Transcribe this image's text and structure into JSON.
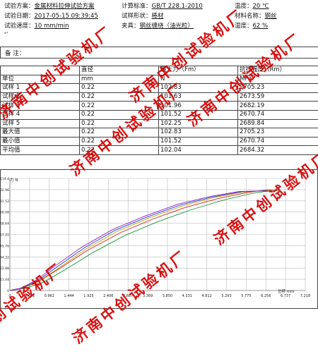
{
  "header": {
    "scheme_label": "试验方案：",
    "scheme_value": "金属材料拉伸试验方案",
    "standard_label": "计算标准：",
    "standard_value": "GB/T 228.1-2010",
    "temp_label": "温度：",
    "temp_value": "20 ℃",
    "date_label": "试验日期：",
    "date_value": "2017-05-15 09:39:45",
    "shape_label": "试样形状：",
    "shape_value": "棒材",
    "material_label": "材料名称：",
    "material_value": "钢丝",
    "speed_label": "试验速度：",
    "speed_value": "10 mm/min",
    "fixture_label": "夹具：",
    "fixture_value": "钢丝缠绕（油光粒）",
    "humidity_label": "湿度：",
    "humidity_value": "62 %",
    "return_mark": "↵"
  },
  "remark": {
    "label": "备  注："
  },
  "table": {
    "headers": [
      "",
      "直径",
      "最大力（Fm）",
      "抗拉强度（Rm）"
    ],
    "units": [
      "单位",
      "mm",
      "N",
      "MPa"
    ],
    "rows": [
      [
        "试样 1",
        "0.22",
        "102.83",
        "2705.23"
      ],
      [
        "试样 2",
        "0.22",
        "101.63",
        "2673.59"
      ],
      [
        "试样 3",
        "0.22",
        "101.96",
        "2682.19"
      ],
      [
        "试样 4",
        "0.22",
        "101.52",
        "2670.74"
      ],
      [
        "试样 5",
        "0.22",
        "102.25",
        "2689.84"
      ],
      [
        "最大值",
        "0.22",
        "102.83",
        "2705.23"
      ],
      [
        "最小值",
        "0.22",
        "101.52",
        "2670.74"
      ],
      [
        "平均值",
        "0.22",
        "102.04",
        "2684.32"
      ]
    ]
  },
  "watermarks": [
    "济南中创试验机厂",
    "济南中创试验机厂",
    "济南中创试验机厂",
    "济南中创试验机厂",
    "济南中创试验机厂",
    "济南中创试验机厂",
    "济南中创试验机厂"
  ],
  "chart_data": {
    "type": "line",
    "xlabel": "位移  mm",
    "ylabel": "力  N",
    "xlim": [
      0,
      7.218
    ],
    "ylim": [
      0,
      114.4
    ],
    "x_ticks": [
      "0",
      "0.481",
      "0.962",
      "1.444",
      "1.925",
      "2.406",
      "2.887",
      "3.369",
      "3.850",
      "4.331",
      "4.812",
      "5.293",
      "5.775",
      "6.256",
      "6.737",
      "7.218"
    ],
    "y_ticks": [
      "0",
      "11.44",
      "22.88",
      "34.32",
      "45.76",
      "57.20",
      "68.64",
      "80.08",
      "91.52",
      "102.96",
      "114.4"
    ],
    "grid": true,
    "series": [
      {
        "color": "#1a9a3a",
        "x": [
          0,
          0.35,
          0.8,
          1.3,
          2.0,
          2.8,
          3.6,
          4.4,
          5.2,
          5.9,
          6.45,
          6.55
        ],
        "y": [
          0,
          2,
          8,
          20,
          38,
          56,
          70,
          82,
          92,
          99,
          102.3,
          101.6
        ]
      },
      {
        "color": "#d02020",
        "x": [
          0,
          0.3,
          0.7,
          1.2,
          1.9,
          2.7,
          3.5,
          4.3,
          5.1,
          5.8,
          6.3,
          6.45
        ],
        "y": [
          0,
          2,
          9,
          22,
          41,
          59,
          73,
          85,
          94,
          100,
          102.8,
          102
        ]
      },
      {
        "color": "#c0a000",
        "x": [
          0,
          0.3,
          0.7,
          1.2,
          1.85,
          2.6,
          3.4,
          4.2,
          5.0,
          5.7,
          6.25,
          6.4
        ],
        "y": [
          0,
          2.2,
          9.5,
          23,
          42,
          60,
          74,
          86,
          95,
          100.5,
          102.2,
          101.5
        ]
      },
      {
        "color": "#2040d0",
        "x": [
          0,
          0.28,
          0.68,
          1.15,
          1.8,
          2.55,
          3.35,
          4.15,
          4.95,
          5.65,
          6.2,
          6.35
        ],
        "y": [
          0,
          2.3,
          10,
          24,
          43,
          61,
          75,
          87,
          95.5,
          100.8,
          101.9,
          101.2
        ]
      },
      {
        "color": "#9020c0",
        "x": [
          0,
          0.26,
          0.65,
          1.1,
          1.75,
          2.5,
          3.3,
          4.1,
          4.9,
          5.6,
          6.15,
          6.3
        ],
        "y": [
          0,
          2.4,
          10.5,
          25,
          44,
          62,
          76,
          88,
          96,
          101,
          101.6,
          101
        ]
      }
    ]
  }
}
